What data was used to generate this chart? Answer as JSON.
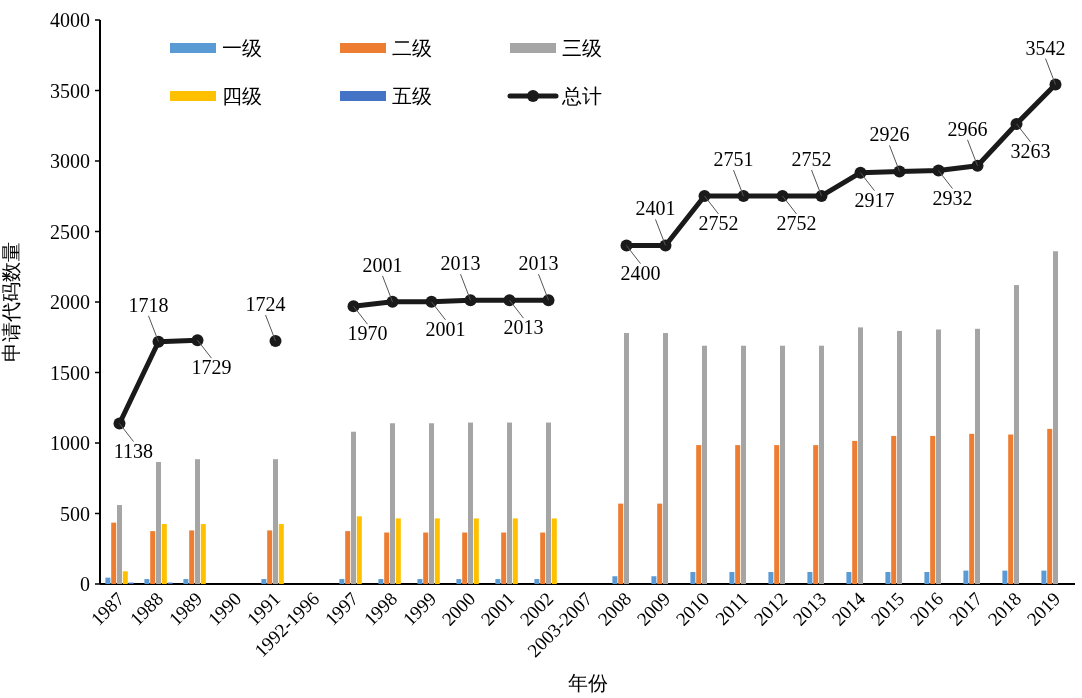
{
  "chart_data": {
    "type": "bar",
    "xlabel": "年份",
    "ylabel": "申请代码数量",
    "categories": [
      "1987",
      "1988",
      "1989",
      "1990",
      "1991",
      "1992-1996",
      "1997",
      "1998",
      "1999",
      "2000",
      "2001",
      "2002",
      "2003-2007",
      "2008",
      "2009",
      "2010",
      "2011",
      "2012",
      "2013",
      "2014",
      "2015",
      "2016",
      "2017",
      "2018",
      "2019"
    ],
    "series": [
      {
        "name": "一级",
        "color": "#5b9bd5",
        "values": [
          45,
          35,
          35,
          null,
          35,
          null,
          35,
          35,
          35,
          35,
          35,
          35,
          null,
          55,
          55,
          85,
          85,
          85,
          85,
          85,
          85,
          85,
          95,
          95,
          95
        ]
      },
      {
        "name": "二级",
        "color": "#ed7d31",
        "values": [
          435,
          375,
          380,
          null,
          380,
          null,
          375,
          365,
          365,
          365,
          365,
          365,
          null,
          570,
          570,
          985,
          985,
          985,
          985,
          1015,
          1050,
          1050,
          1065,
          1060,
          1100
        ]
      },
      {
        "name": "三级",
        "color": "#a5a5a5",
        "values": [
          560,
          865,
          885,
          null,
          885,
          null,
          1080,
          1140,
          1140,
          1145,
          1145,
          1145,
          null,
          1780,
          1780,
          1690,
          1690,
          1690,
          1690,
          1820,
          1795,
          1805,
          1810,
          2120,
          2360
        ]
      },
      {
        "name": "四级",
        "color": "#ffc000",
        "values": [
          90,
          425,
          425,
          null,
          425,
          null,
          480,
          465,
          465,
          465,
          465,
          465,
          null,
          null,
          null,
          null,
          null,
          null,
          null,
          null,
          null,
          null,
          null,
          null,
          null
        ]
      },
      {
        "name": "五级",
        "color": "#4472c4",
        "values": [
          10,
          10,
          null,
          null,
          null,
          null,
          null,
          null,
          null,
          null,
          null,
          null,
          null,
          null,
          null,
          null,
          null,
          null,
          null,
          null,
          null,
          null,
          null,
          null,
          null
        ]
      },
      {
        "name": "总计",
        "color": "#1a1a1a",
        "type": "line",
        "marker": "circle",
        "values": [
          1138,
          1718,
          1729,
          null,
          1724,
          null,
          1970,
          2001,
          2001,
          2013,
          2013,
          2013,
          null,
          2400,
          2401,
          2752,
          2751,
          2752,
          2752,
          2917,
          2926,
          2932,
          2966,
          3263,
          3542
        ],
        "value_labels": [
          "1138",
          "1718",
          "1729",
          null,
          "1724",
          null,
          "1970",
          "2001",
          "2001",
          "2013",
          "2013",
          "2013",
          null,
          "2400",
          "2401",
          "2752",
          "2751",
          "2752",
          "2752",
          "2917",
          "2926",
          "2932",
          "2966",
          "3263",
          "3542"
        ]
      }
    ],
    "ylim": [
      0,
      4000
    ],
    "yticks": [
      0,
      500,
      1000,
      1500,
      2000,
      2500,
      3000,
      3500,
      4000
    ],
    "legend": "top"
  }
}
